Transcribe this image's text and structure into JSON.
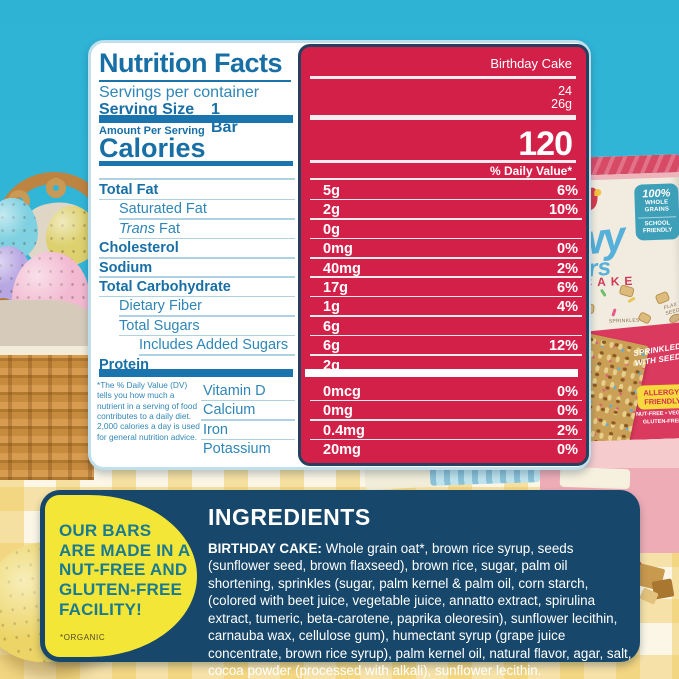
{
  "nutrition": {
    "title": "Nutrition Facts",
    "flavor": "Birthday Cake",
    "servings_label": "Servings per container",
    "servings_value": "24",
    "serving_size_label": "Serving Size",
    "serving_size_value": "1 Bar",
    "serving_size_grams": "26g",
    "amount_label": "Amount Per Serving",
    "calories_label": "Calories",
    "calories_value": "120",
    "daily_value_header": "% Daily Value*",
    "rows": [
      {
        "name": "Total Fat",
        "value": "5g",
        "dv": "6%",
        "bold": true,
        "indent": 0
      },
      {
        "name": "Saturated Fat",
        "value": "2g",
        "dv": "10%",
        "bold": false,
        "indent": 1
      },
      {
        "name": "Trans Fat",
        "value": "0g",
        "dv": "",
        "bold": false,
        "indent": 1,
        "italic_first": true
      },
      {
        "name": "Cholesterol",
        "value": "0mg",
        "dv": "0%",
        "bold": true,
        "indent": 0
      },
      {
        "name": "Sodium",
        "value": "40mg",
        "dv": "2%",
        "bold": true,
        "indent": 0
      },
      {
        "name": "Total Carbohydrate",
        "value": "17g",
        "dv": "6%",
        "bold": true,
        "indent": 0
      },
      {
        "name": "Dietary Fiber",
        "value": "1g",
        "dv": "4%",
        "bold": false,
        "indent": 1
      },
      {
        "name": "Total Sugars",
        "value": "6g",
        "dv": "",
        "bold": false,
        "indent": 1
      },
      {
        "name": "Includes Added Sugars",
        "value": "6g",
        "dv": "12%",
        "bold": false,
        "indent": 2
      },
      {
        "name": "Protein",
        "value": "2g",
        "dv": "",
        "bold": true,
        "indent": 0,
        "no_line": true
      }
    ],
    "vitamins": [
      {
        "name": "Vitamin D",
        "value": "0mcg",
        "dv": "0%"
      },
      {
        "name": "Calcium",
        "value": "0mg",
        "dv": "0%"
      },
      {
        "name": "Iron",
        "value": "0.4mg",
        "dv": "2%"
      },
      {
        "name": "Potassium",
        "value": "20mg",
        "dv": "0%",
        "no_line": true
      }
    ],
    "footnote": "*The % Daily Value (DV)\ntells you how much a\nnutrient in a serving of food\ncontributes to a daily diet.\n2,000 calories a day is used\nfor general nutrition advice."
  },
  "facility_note": {
    "text": "OUR BARS\nARE MADE IN A\nNUT-FREE AND\nGLUTEN-FREE\nFACILITY!",
    "footnote": "*ORGANIC"
  },
  "ingredients": {
    "title": "INGREDIENTS",
    "flavor_label": "BIRTHDAY CAKE:",
    "text": " Whole grain oat*, brown rice syrup, seeds (sunflower seed, brown flaxseed), brown rice, sugar, palm oil shortening, sprinkles (sugar, palm kernel & palm oil, corn starch, (colored with beet juice, vegetable juice, annatto extract, spirulina extract, tumeric, beta-carotene, paprika oleoresin), sunflower lecithin, carnauba wax, cellulose gum), humectant syrup (grape juice concentrate, brown rice syrup), palm kernel oil, natural flavor, agar, salt, cocoa powder (processed with alkali), sunflower lecithin."
  },
  "product_box": {
    "brand_script_1": "wy",
    "brand_script_2": "ars",
    "flavor_fragment": "CAKE",
    "badge_100": "100%",
    "badge_whole_grains": "WHOLE GRAINS",
    "badge_school": "SCHOOL FRIENDLY",
    "sprinkles_label": "SPRINKLES",
    "flax_label": "FLAX SEED",
    "sprinkled_note": "SPRINKLED WITH SEEDS",
    "allergy_badge": "ALLERGY- FRIENDLY",
    "allergy_sub": "NUT-FREE • VEGAN GLUTEN-FREE"
  },
  "colors": {
    "sky": "#31b5d6",
    "label_red": "#d32049",
    "label_blue": "#176fa5",
    "navy": "#17486b",
    "yellow": "#f3e636",
    "teal_text": "#1a7b90"
  }
}
